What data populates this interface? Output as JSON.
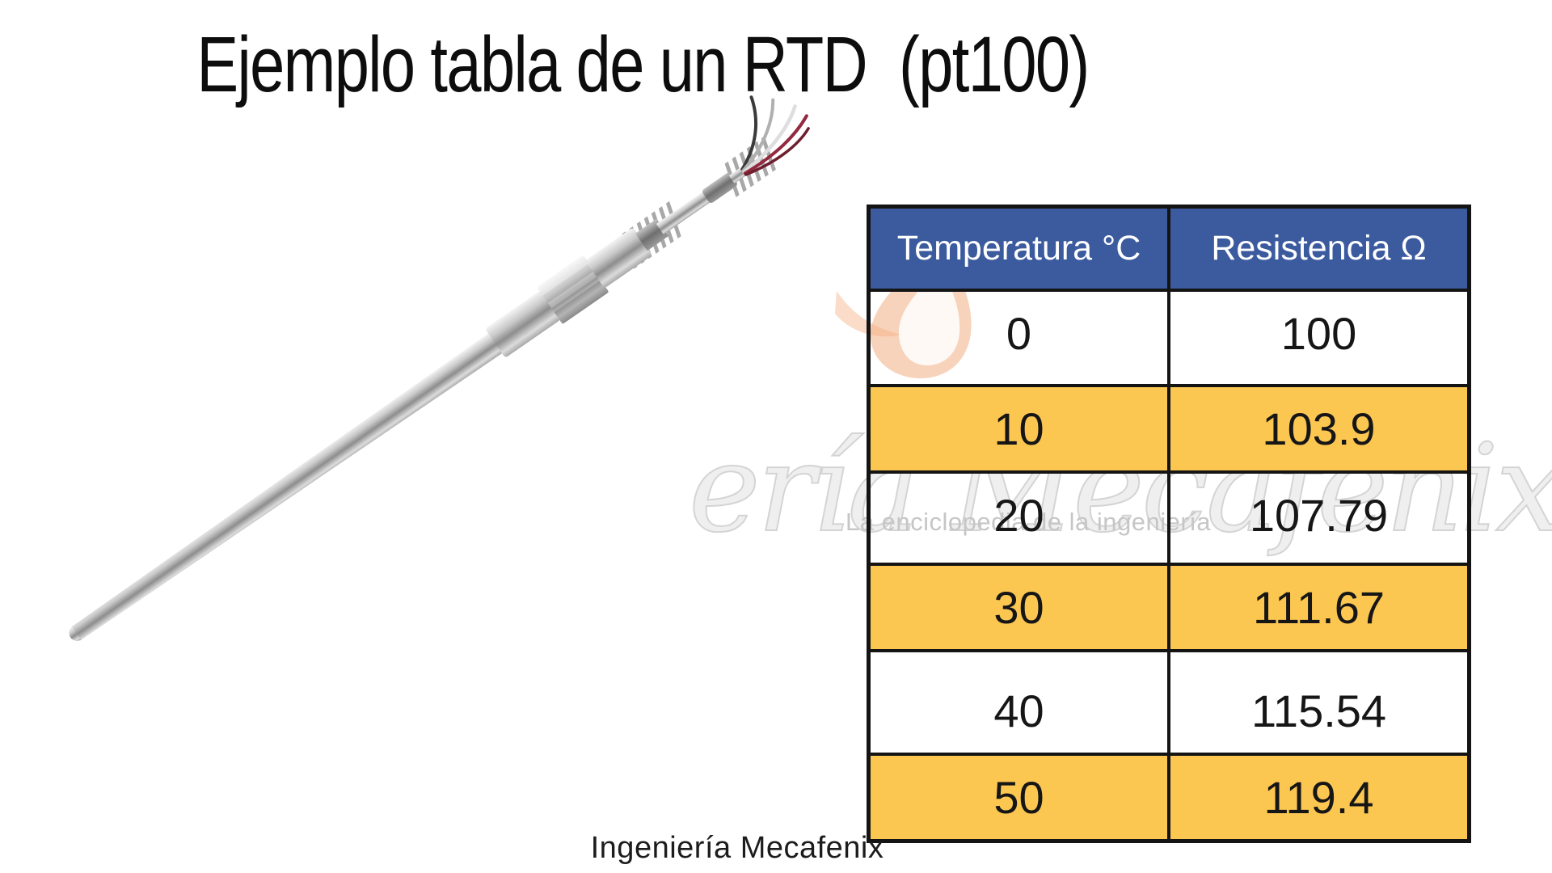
{
  "title": "Ejemplo tabla de un RTD  (pt100)",
  "probe": {
    "name": "rtd-pt100-probe-photo"
  },
  "table": {
    "headers": [
      {
        "label": "Temperatura °C"
      },
      {
        "label": "Resistencia Ω"
      }
    ],
    "rows": [
      {
        "temp": "0",
        "res": "100",
        "highlight": false
      },
      {
        "temp": "10",
        "res": "103.9",
        "highlight": true
      },
      {
        "temp": "20",
        "res": "107.79",
        "highlight": false
      },
      {
        "temp": "30",
        "res": "111.67",
        "highlight": true
      },
      {
        "temp": "40",
        "res": "115.54",
        "highlight": false
      },
      {
        "temp": "50",
        "res": "119.4",
        "highlight": true
      }
    ]
  },
  "watermark": {
    "script": "ería Mecafenix",
    "tagline": "La enciclopedia de la ingeniería"
  },
  "footer": "Ingeniería Mecafenix",
  "colors": {
    "header_bg": "#3b5b9e",
    "header_text": "#ffffff",
    "row_highlight": "#fcc751",
    "border": "#141414",
    "cell_text": "#161616"
  },
  "chart_data": {
    "type": "table",
    "title": "Ejemplo tabla de un RTD (pt100)",
    "columns": [
      "Temperatura °C",
      "Resistencia Ω"
    ],
    "rows": [
      [
        0,
        100
      ],
      [
        10,
        103.9
      ],
      [
        20,
        107.79
      ],
      [
        30,
        111.67
      ],
      [
        40,
        115.54
      ],
      [
        50,
        119.4
      ]
    ],
    "x_unit": "°C",
    "y_unit": "Ω",
    "source_note": "Ingeniería Mecafenix"
  }
}
